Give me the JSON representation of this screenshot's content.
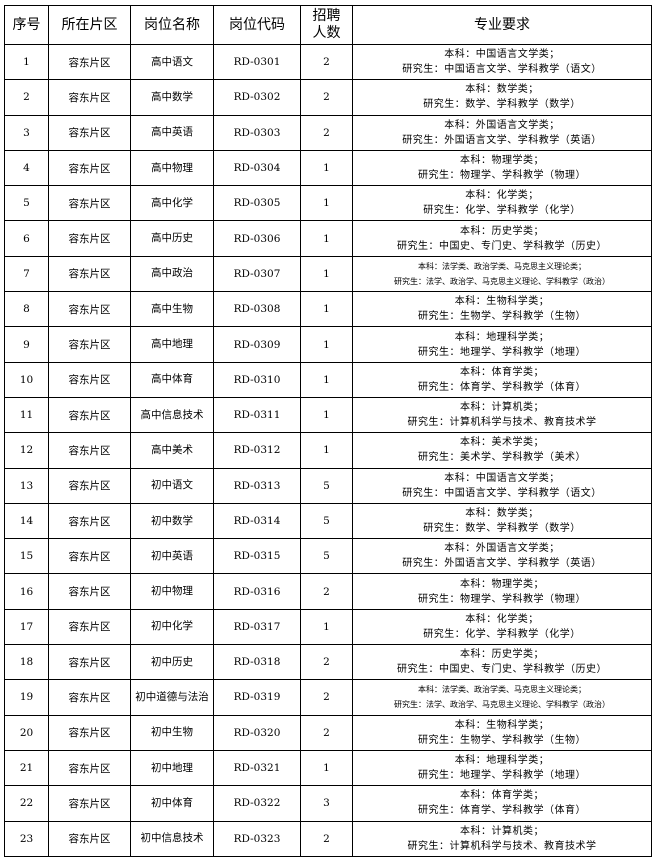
{
  "headers": [
    "序号",
    "所在片区",
    "岗位名称",
    "岗位代码",
    "招聘\n人数",
    "专业要求"
  ],
  "rows": [
    {
      "no": "1",
      "area": "容东片区",
      "post": "高中语文",
      "code": "RD-0301",
      "count": "2",
      "req1": "本科：中国语言文学类；",
      "req2": "研究生：中国语言文学、学科教学（语文）"
    },
    {
      "no": "2",
      "area": "容东片区",
      "post": "高中数学",
      "code": "RD-0302",
      "count": "2",
      "req1": "本科：数学类；",
      "req2": "研究生：数学、学科教学（数学）"
    },
    {
      "no": "3",
      "area": "容东片区",
      "post": "高中英语",
      "code": "RD-0303",
      "count": "2",
      "req1": "本科：外国语言文学类；",
      "req2": "研究生：外国语言文学、学科教学（英语）"
    },
    {
      "no": "4",
      "area": "容东片区",
      "post": "高中物理",
      "code": "RD-0304",
      "count": "1",
      "req1": "本科：物理学类；",
      "req2": "研究生：物理学、学科教学（物理）"
    },
    {
      "no": "5",
      "area": "容东片区",
      "post": "高中化学",
      "code": "RD-0305",
      "count": "1",
      "req1": "本科：化学类；",
      "req2": "研究生：化学、学科教学（化学）"
    },
    {
      "no": "6",
      "area": "容东片区",
      "post": "高中历史",
      "code": "RD-0306",
      "count": "1",
      "req1": "本科：历史学类；",
      "req2": "研究生：中国史、专门史、学科教学（历史）"
    },
    {
      "no": "7",
      "area": "容东片区",
      "post": "高中政治",
      "code": "RD-0307",
      "count": "1",
      "req1": "本科：法学类、政治学类、马克思主义理论类；",
      "req2": "研究生：法学、政治学、马克思主义理论、学科教学（政治）",
      "small": true
    },
    {
      "no": "8",
      "area": "容东片区",
      "post": "高中生物",
      "code": "RD-0308",
      "count": "1",
      "req1": "本科：生物科学类；",
      "req2": "研究生：生物学、学科教学（生物）"
    },
    {
      "no": "9",
      "area": "容东片区",
      "post": "高中地理",
      "code": "RD-0309",
      "count": "1",
      "req1": "本科：地理科学类；",
      "req2": "研究生：地理学、学科教学（地理）"
    },
    {
      "no": "10",
      "area": "容东片区",
      "post": "高中体育",
      "code": "RD-0310",
      "count": "1",
      "req1": "本科：体育学类；",
      "req2": "研究生：体育学、学科教学（体育）"
    },
    {
      "no": "11",
      "area": "容东片区",
      "post": "高中信息技术",
      "code": "RD-0311",
      "count": "1",
      "req1": "本科：计算机类；",
      "req2": "研究生：计算机科学与技术、教育技术学"
    },
    {
      "no": "12",
      "area": "容东片区",
      "post": "高中美术",
      "code": "RD-0312",
      "count": "1",
      "req1": "本科：美术学类；",
      "req2": "研究生：美术学、学科教学（美术）"
    },
    {
      "no": "13",
      "area": "容东片区",
      "post": "初中语文",
      "code": "RD-0313",
      "count": "5",
      "req1": "本科：中国语言文学类；",
      "req2": "研究生：中国语言文学、学科教学（语文）"
    },
    {
      "no": "14",
      "area": "容东片区",
      "post": "初中数学",
      "code": "RD-0314",
      "count": "5",
      "req1": "本科：数学类；",
      "req2": "研究生：数学、学科教学（数学）"
    },
    {
      "no": "15",
      "area": "容东片区",
      "post": "初中英语",
      "code": "RD-0315",
      "count": "5",
      "req1": "本科：外国语言文学类；",
      "req2": "研究生：外国语言文学、学科教学（英语）"
    },
    {
      "no": "16",
      "area": "容东片区",
      "post": "初中物理",
      "code": "RD-0316",
      "count": "2",
      "req1": "本科：物理学类；",
      "req2": "研究生：物理学、学科教学（物理）"
    },
    {
      "no": "17",
      "area": "容东片区",
      "post": "初中化学",
      "code": "RD-0317",
      "count": "1",
      "req1": "本科：化学类；",
      "req2": "研究生：化学、学科教学（化学）"
    },
    {
      "no": "18",
      "area": "容东片区",
      "post": "初中历史",
      "code": "RD-0318",
      "count": "2",
      "req1": "本科：历史学类；",
      "req2": "研究生：中国史、专门史、学科教学（历史）"
    },
    {
      "no": "19",
      "area": "容东片区",
      "post": "初中道德与法治",
      "code": "RD-0319",
      "count": "2",
      "req1": "本科：法学类、政治学类、马克思主义理论类；",
      "req2": "研究生：法学、政治学、马克思主义理论、学科教学（政治）",
      "small": true
    },
    {
      "no": "20",
      "area": "容东片区",
      "post": "初中生物",
      "code": "RD-0320",
      "count": "2",
      "req1": "本科：生物科学类；",
      "req2": "研究生：生物学、学科教学（生物）"
    },
    {
      "no": "21",
      "area": "容东片区",
      "post": "初中地理",
      "code": "RD-0321",
      "count": "1",
      "req1": "本科：地理科学类；",
      "req2": "研究生：地理学、学科教学（地理）"
    },
    {
      "no": "22",
      "area": "容东片区",
      "post": "初中体育",
      "code": "RD-0322",
      "count": "3",
      "req1": "本科：体育学类；",
      "req2": "研究生：体育学、学科教学（体育）"
    },
    {
      "no": "23",
      "area": "容东片区",
      "post": "初中信息技术",
      "code": "RD-0323",
      "count": "2",
      "req1": "本科：计算机类；",
      "req2": "研究生：计算机科学与技术、教育技术学"
    }
  ]
}
